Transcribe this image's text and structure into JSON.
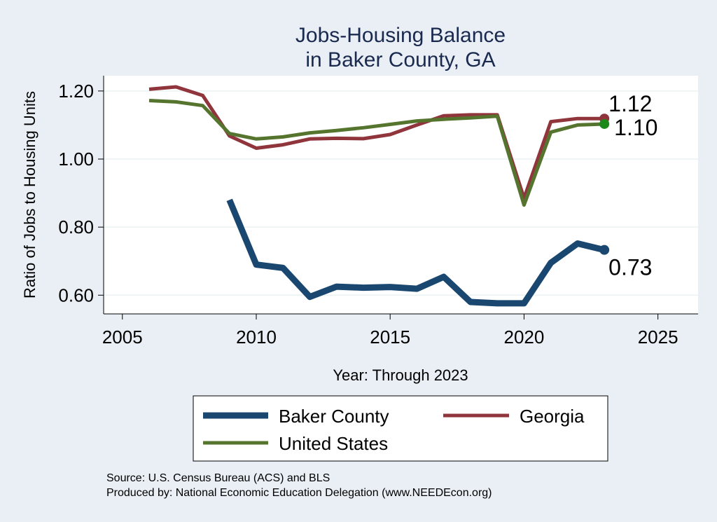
{
  "chart_data": {
    "type": "line",
    "title": [
      "Jobs-Housing Balance",
      "in Baker County, GA"
    ],
    "xlabel": "Year: Through 2023",
    "ylabel": "Ratio of Jobs to Housing Units",
    "xlim": [
      2004.3,
      2026.5
    ],
    "ylim": [
      0.545,
      1.245
    ],
    "xticks": [
      2005,
      2010,
      2015,
      2020,
      2025
    ],
    "yticks": [
      0.6,
      0.8,
      1.0,
      1.2
    ],
    "ytick_labels": [
      "0.60",
      "0.80",
      "1.00",
      "1.20"
    ],
    "grid": true,
    "legend_position": "bottom",
    "series": [
      {
        "name": "Baker County",
        "color": "#1a476f",
        "x": [
          2009,
          2010,
          2011,
          2012,
          2013,
          2014,
          2015,
          2016,
          2017,
          2018,
          2019,
          2020,
          2021,
          2022,
          2023
        ],
        "values": [
          0.88,
          0.69,
          0.68,
          0.595,
          0.625,
          0.622,
          0.624,
          0.619,
          0.654,
          0.58,
          0.576,
          0.576,
          0.695,
          0.752,
          0.733
        ],
        "end_label": "0.73",
        "end_marker_color": "#1a476f"
      },
      {
        "name": "Georgia",
        "color": "#90353b",
        "x": [
          2006,
          2007,
          2008,
          2009,
          2010,
          2011,
          2012,
          2013,
          2014,
          2015,
          2016,
          2017,
          2018,
          2019,
          2020,
          2021,
          2022,
          2023
        ],
        "values": [
          1.205,
          1.212,
          1.187,
          1.068,
          1.032,
          1.042,
          1.059,
          1.061,
          1.06,
          1.072,
          1.1,
          1.127,
          1.13,
          1.13,
          0.885,
          1.11,
          1.119,
          1.119
        ],
        "end_label": "1.12",
        "end_marker_color": "#90353b"
      },
      {
        "name": "United States",
        "color": "#55752f",
        "x": [
          2006,
          2007,
          2008,
          2009,
          2010,
          2011,
          2012,
          2013,
          2014,
          2015,
          2016,
          2017,
          2018,
          2019,
          2020,
          2021,
          2022,
          2023
        ],
        "values": [
          1.172,
          1.168,
          1.157,
          1.075,
          1.059,
          1.065,
          1.077,
          1.084,
          1.092,
          1.102,
          1.112,
          1.117,
          1.121,
          1.126,
          0.865,
          1.079,
          1.1,
          1.103
        ],
        "end_label": "1.10",
        "end_marker_color": "#1b8a1b"
      }
    ]
  },
  "source_lines": [
    "Source: U.S. Census Bureau (ACS) and BLS",
    "Produced by: National Economic Education Delegation (www.NEEDEcon.org)"
  ]
}
